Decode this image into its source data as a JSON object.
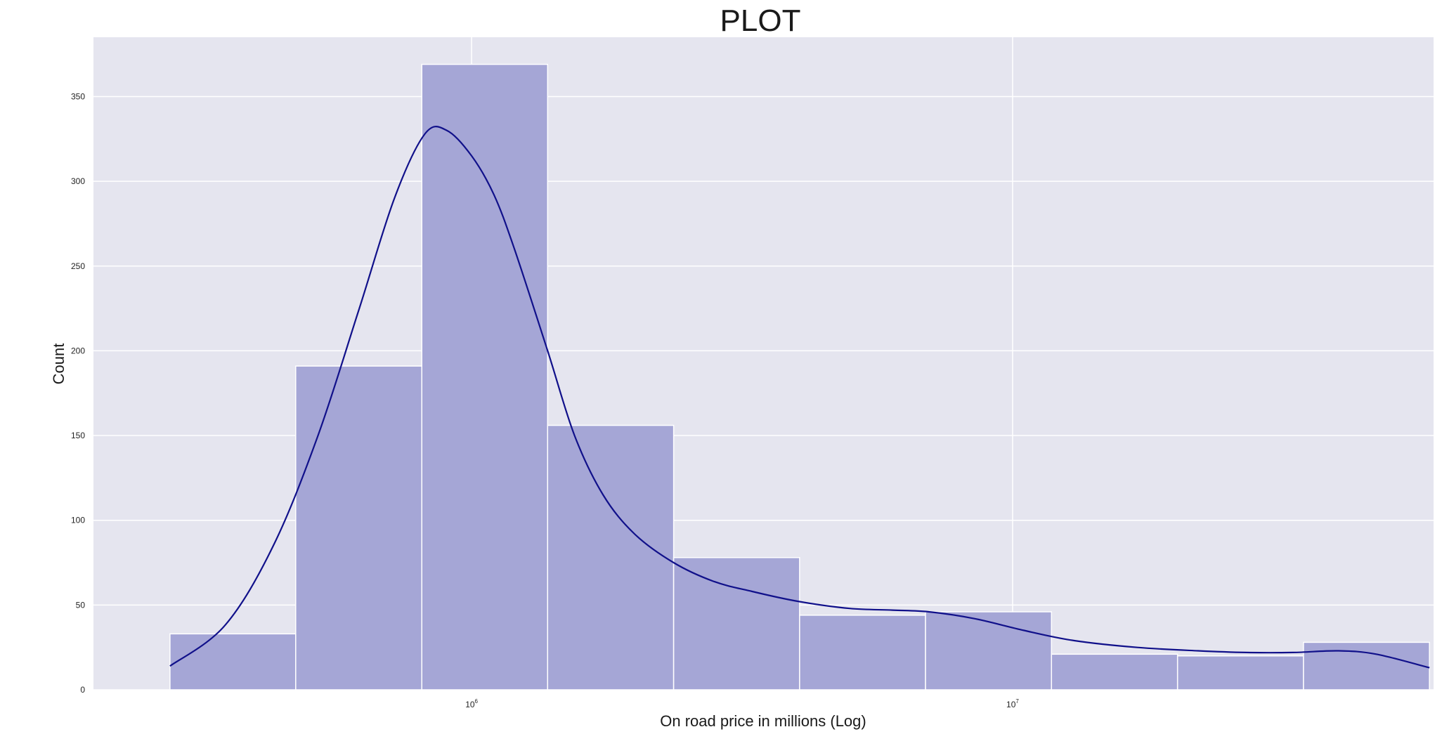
{
  "chart_data": {
    "type": "bar",
    "title": "PLOT",
    "xlabel": "On road price in millions (Log)",
    "ylabel": "Count",
    "x_scale": "log",
    "xlim": [
      200000,
      60000000
    ],
    "ylim": [
      0,
      385
    ],
    "grid": true,
    "y_ticks": [
      0,
      50,
      100,
      150,
      200,
      250,
      300,
      350
    ],
    "x_ticks": [
      {
        "value": 1000000,
        "base": "10",
        "exp": "6"
      },
      {
        "value": 10000000,
        "base": "10",
        "exp": "7"
      }
    ],
    "bins": [
      {
        "x0": 277000,
        "x1": 473000,
        "count": 33
      },
      {
        "x0": 473000,
        "x1": 809000,
        "count": 191
      },
      {
        "x0": 809000,
        "x1": 1382000,
        "count": 369
      },
      {
        "x0": 1382000,
        "x1": 2363000,
        "count": 156
      },
      {
        "x0": 2363000,
        "x1": 4039000,
        "count": 78
      },
      {
        "x0": 4039000,
        "x1": 6903000,
        "count": 44
      },
      {
        "x0": 6903000,
        "x1": 11800000,
        "count": 46
      },
      {
        "x0": 11800000,
        "x1": 20180000,
        "count": 21
      },
      {
        "x0": 20180000,
        "x1": 34490000,
        "count": 20
      },
      {
        "x0": 34490000,
        "x1": 58960000,
        "count": 28
      }
    ],
    "kde": {
      "x": [
        277000,
        350000,
        430000,
        520000,
        620000,
        720000,
        820000,
        900000,
        1000000,
        1100000,
        1200000,
        1382000,
        1550000,
        1750000,
        2000000,
        2363000,
        2800000,
        3300000,
        4039000,
        5000000,
        6000000,
        7000000,
        8500000,
        10500000,
        13000000,
        17000000,
        22000000,
        27000000,
        33000000,
        40000000,
        47000000,
        58960000
      ],
      "y": [
        14,
        38,
        85,
        150,
        225,
        290,
        328,
        330,
        315,
        292,
        260,
        200,
        150,
        115,
        92,
        75,
        64,
        58,
        52,
        48,
        47,
        46,
        42,
        35,
        29,
        25,
        23,
        22,
        22,
        23,
        21,
        13
      ]
    },
    "colors": {
      "bar_fill": "#a5a6d6",
      "kde_line": "#10108a",
      "background": "#e5e5ef",
      "grid": "#ffffff"
    }
  }
}
